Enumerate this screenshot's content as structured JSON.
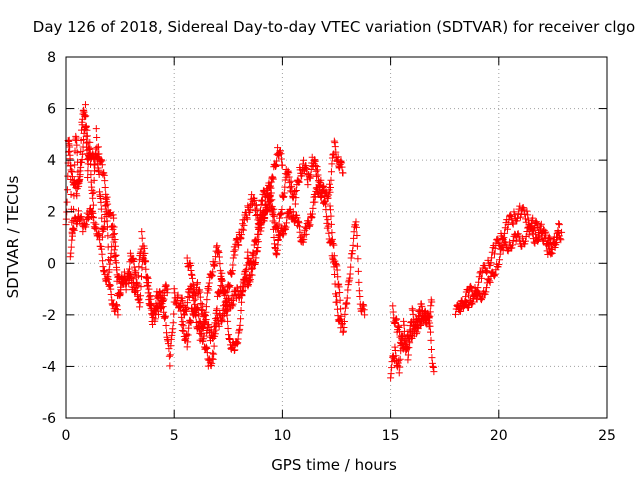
{
  "chart_data": {
    "type": "scatter",
    "title": "Day 126 of 2018, Sidereal Day-to-day VTEC variation (SDTVAR) for receiver clgo",
    "xlabel": "GPS time / hours",
    "ylabel": "SDTVAR / TECUs",
    "xlim": [
      0,
      25
    ],
    "ylim": [
      -6,
      8
    ],
    "xticks": [
      0,
      5,
      10,
      15,
      20,
      25
    ],
    "yticks": [
      -6,
      -4,
      -2,
      0,
      2,
      4,
      6,
      8
    ],
    "grid": true,
    "marker": "+",
    "color": "#ff0000",
    "series": [
      {
        "name": "SDTVAR",
        "segments": [
          {
            "x": [
              0.0,
              0.15,
              0.3,
              0.45,
              0.6,
              0.75,
              0.9,
              1.0,
              1.1,
              1.25,
              1.4,
              1.55,
              1.7,
              1.85,
              2.0,
              2.2,
              2.4,
              2.6,
              2.8,
              3.0,
              3.2,
              3.4,
              3.6,
              3.8,
              4.0,
              4.2,
              4.4,
              4.6,
              4.8,
              5.0
            ],
            "y": [
              1.5,
              4.8,
              1.0,
              5.0,
              3.0,
              5.5,
              6.0,
              3.5,
              4.5,
              2.0,
              5.0,
              3.0,
              1.0,
              2.5,
              -0.5,
              2.0,
              -1.5,
              -0.5,
              -1.0,
              0.5,
              -0.5,
              -1.5,
              0.5,
              -1.0,
              -2.5,
              -1.0,
              -1.5,
              -2.0,
              -4.0,
              -1.5
            ]
          },
          {
            "x": [
              0.1,
              0.3,
              0.5,
              0.7,
              0.9,
              1.1,
              1.3,
              1.5,
              1.7,
              1.9,
              2.1,
              2.3,
              2.5,
              2.7,
              2.9,
              3.1,
              3.3,
              3.5,
              3.7,
              3.9,
              4.1,
              4.3,
              4.5,
              4.7
            ],
            "y": [
              4.6,
              3.5,
              2.5,
              4.0,
              5.2,
              4.5,
              3.8,
              4.5,
              3.5,
              2.5,
              1.5,
              0.2,
              -1.0,
              -0.5,
              -0.6,
              -0.8,
              -1.0,
              1.0,
              -0.3,
              -1.5,
              -2.0,
              -1.8,
              -1.2,
              -1.0
            ]
          },
          {
            "x": [
              0.2,
              0.4,
              0.6,
              0.8,
              1.0,
              1.2,
              1.4,
              1.6,
              1.8,
              2.0,
              2.2,
              2.4
            ],
            "y": [
              0.5,
              1.5,
              2.0,
              1.2,
              2.0,
              1.8,
              1.5,
              0.5,
              -0.3,
              -1.0,
              -1.5,
              -2.0
            ]
          },
          {
            "x": [
              5.0,
              5.2,
              5.4,
              5.6,
              5.8,
              6.0,
              6.2,
              6.4,
              6.6,
              6.8,
              7.0,
              7.2,
              7.4,
              7.6,
              7.8,
              8.0,
              8.2,
              8.4,
              8.6,
              8.8,
              9.0,
              9.2,
              9.4,
              9.6,
              9.8,
              10.0,
              10.2,
              10.4,
              10.6,
              10.8,
              11.0,
              11.2,
              11.4,
              11.6,
              11.8,
              12.0,
              12.2,
              12.4,
              12.6,
              12.8
            ],
            "y": [
              -1.2,
              -1.5,
              -2.5,
              -3.0,
              -2.0,
              -1.5,
              -2.5,
              -3.0,
              -4.0,
              -3.5,
              -1.5,
              -0.5,
              -2.0,
              -3.0,
              -3.5,
              -2.5,
              -1.0,
              0.5,
              -0.5,
              0.5,
              1.5,
              2.0,
              3.0,
              2.0,
              1.0,
              2.5,
              3.5,
              3.0,
              2.5,
              3.5,
              3.8,
              3.2,
              4.0,
              3.5,
              3.0,
              2.5,
              3.0,
              4.5,
              4.0,
              3.5
            ]
          },
          {
            "x": [
              5.3,
              5.5,
              5.7,
              5.9,
              6.1,
              6.3,
              6.5,
              6.7,
              6.9,
              7.1,
              7.3,
              7.5,
              7.7,
              7.9,
              8.1,
              8.3,
              8.5,
              8.7,
              8.9,
              9.1,
              9.3,
              9.5,
              9.7,
              9.9,
              10.1,
              10.3,
              10.5,
              10.7,
              10.9,
              11.1,
              11.3,
              11.5,
              11.7,
              11.9,
              12.1,
              12.3,
              12.5,
              12.7
            ],
            "y": [
              -1.5,
              -1.8,
              -1.2,
              -1.0,
              -1.0,
              -1.8,
              -2.5,
              -2.8,
              -2.5,
              -2.2,
              -1.8,
              -1.6,
              -1.4,
              -1.2,
              -1.0,
              -0.8,
              -0.5,
              0.5,
              1.5,
              2.5,
              3.0,
              2.0,
              0.5,
              1.0,
              1.5,
              1.8,
              2.0,
              1.5,
              1.0,
              1.2,
              1.8,
              2.5,
              3.0,
              2.5,
              1.5,
              0.5,
              -1.5,
              -2.5
            ]
          },
          {
            "x": [
              5.6,
              5.8,
              6.0,
              6.2,
              6.4,
              6.6,
              6.8,
              7.0,
              7.2,
              7.4,
              7.6,
              7.8,
              8.0,
              8.2,
              8.4,
              8.6,
              8.8,
              9.0,
              9.2,
              9.4,
              9.6,
              9.8,
              10.0
            ],
            "y": [
              0.3,
              -0.5,
              -2.0,
              -3.0,
              -2.0,
              -1.0,
              0.0,
              0.5,
              -0.5,
              -1.5,
              -0.5,
              0.5,
              1.0,
              1.5,
              2.0,
              2.5,
              2.0,
              1.5,
              2.0,
              2.5,
              3.5,
              4.5,
              3.8
            ]
          },
          {
            "x": [
              12.2,
              12.4,
              12.6,
              12.8,
              13.0,
              13.2,
              13.4,
              13.6,
              13.8
            ],
            "y": [
              2.0,
              0.5,
              -1.0,
              -2.5,
              -1.5,
              0.5,
              1.5,
              -1.5,
              -2.0
            ]
          },
          {
            "x": [
              15.0,
              15.2,
              15.4,
              15.6,
              15.8,
              16.0,
              16.2,
              16.4,
              16.6,
              16.8,
              17.0
            ],
            "y": [
              -4.2,
              -3.5,
              -4.0,
              -2.5,
              -3.5,
              -2.0,
              -2.5,
              -1.8,
              -2.0,
              -2.5,
              -4.2
            ]
          },
          {
            "x": [
              15.1,
              15.3,
              15.5,
              15.7,
              15.9,
              16.1,
              16.3,
              16.5,
              16.7,
              16.9
            ],
            "y": [
              -1.8,
              -2.5,
              -3.0,
              -3.2,
              -2.8,
              -2.5,
              -2.3,
              -2.0,
              -2.2,
              -1.5
            ]
          },
          {
            "x": [
              18.0,
              18.3,
              18.6,
              18.9,
              19.2,
              19.5,
              19.8,
              20.1,
              20.4,
              20.7,
              21.0,
              21.3,
              21.6,
              21.9,
              22.2,
              22.5,
              22.8
            ],
            "y": [
              -2.0,
              -1.5,
              -1.2,
              -1.0,
              -0.5,
              0.0,
              0.5,
              1.0,
              1.5,
              1.8,
              2.0,
              1.8,
              1.5,
              1.2,
              1.0,
              0.5,
              1.5
            ]
          },
          {
            "x": [
              18.1,
              18.4,
              18.7,
              19.0,
              19.3,
              19.6,
              19.9,
              20.2,
              20.5,
              20.8,
              21.1,
              21.4,
              21.7,
              22.0,
              22.3,
              22.6,
              22.9
            ],
            "y": [
              -1.5,
              -1.8,
              -1.3,
              -1.5,
              -1.0,
              -0.8,
              0.0,
              0.5,
              0.8,
              0.9,
              0.9,
              1.2,
              1.0,
              1.3,
              0.5,
              0.8,
              1.2
            ]
          }
        ]
      }
    ]
  }
}
